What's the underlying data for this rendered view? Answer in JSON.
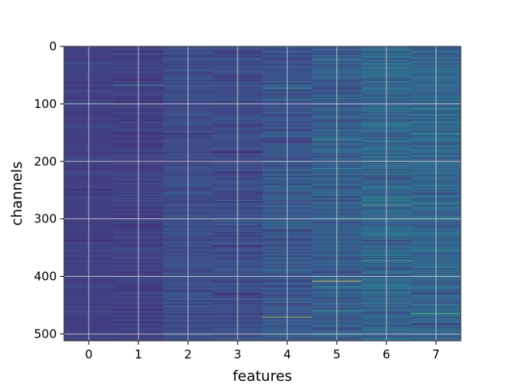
{
  "chart_data": {
    "type": "heatmap",
    "title": "",
    "xlabel": "features",
    "ylabel": "channels",
    "x_categories": [
      "0",
      "1",
      "2",
      "3",
      "4",
      "5",
      "6",
      "7"
    ],
    "x_ticks": [
      0,
      1,
      2,
      3,
      4,
      5,
      6,
      7
    ],
    "y_ticks": [
      0,
      100,
      200,
      300,
      400,
      500
    ],
    "ylim": [
      512,
      0
    ],
    "rows": 512,
    "grid": true,
    "colormap": "viridis",
    "column_base_level": [
      0.2,
      0.2,
      0.24,
      0.24,
      0.27,
      0.3,
      0.33,
      0.33
    ],
    "column_variation": [
      0.06,
      0.07,
      0.1,
      0.12,
      0.15,
      0.18,
      0.2,
      0.2
    ],
    "highlights": [
      {
        "feature": 1,
        "channel": 67,
        "value": 0.55
      },
      {
        "feature": 4,
        "channel": 72,
        "value": 0.55
      },
      {
        "feature": 4,
        "channel": 248,
        "value": 0.5
      },
      {
        "feature": 4,
        "channel": 470,
        "value": 0.9
      },
      {
        "feature": 5,
        "channel": 0,
        "value": 0.55
      },
      {
        "feature": 5,
        "channel": 160,
        "value": 0.55
      },
      {
        "feature": 5,
        "channel": 408,
        "value": 0.98
      },
      {
        "feature": 5,
        "channel": 460,
        "value": 0.62
      },
      {
        "feature": 6,
        "channel": 262,
        "value": 0.6
      },
      {
        "feature": 6,
        "channel": 276,
        "value": 0.7
      },
      {
        "feature": 6,
        "channel": 372,
        "value": 0.65
      },
      {
        "feature": 7,
        "channel": 108,
        "value": 0.55
      },
      {
        "feature": 7,
        "channel": 180,
        "value": 0.5
      },
      {
        "feature": 7,
        "channel": 464,
        "value": 0.75
      }
    ]
  }
}
